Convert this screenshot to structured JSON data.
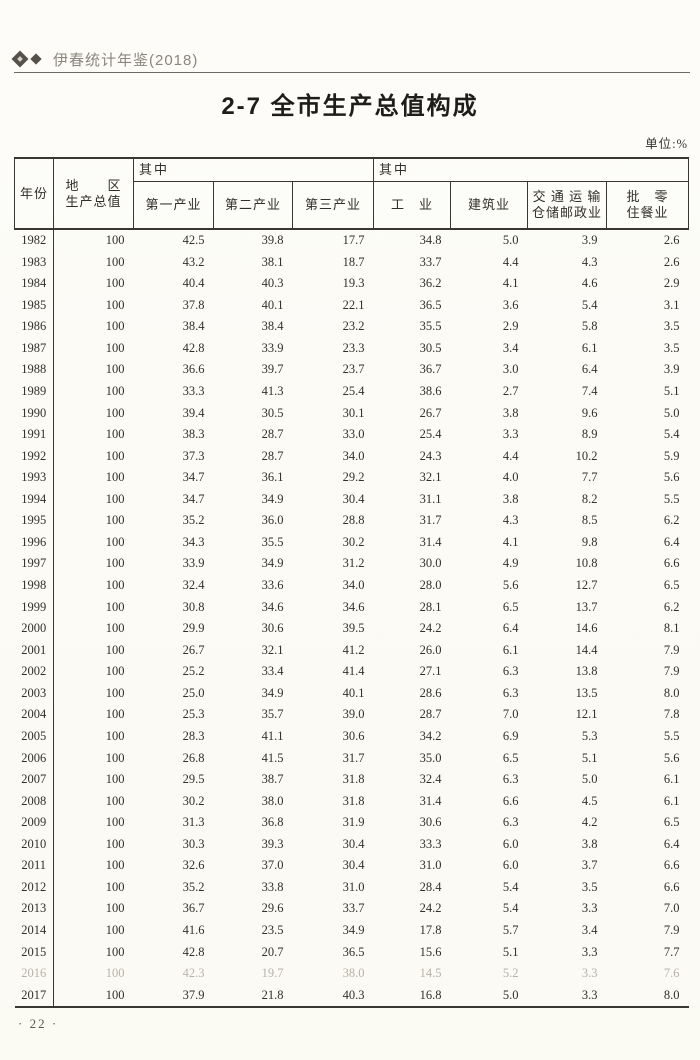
{
  "page": {
    "brand": "伊春统计年鉴(2018)",
    "page_number": "· 22 ·"
  },
  "title": "2-7  全市生产总值构成",
  "unit_label": "单位:%",
  "colors": {
    "paper": "#fcfbf6",
    "ink": "#33302b",
    "line": "#3a3733",
    "ink_faded": "#b7b2a8",
    "brand": "#8b867e",
    "diamond": "#55504a",
    "pagenum": "#5a564f"
  },
  "table": {
    "header": {
      "year": "年份",
      "gdp_line1": "地　　区",
      "gdp_line2": "生产总值",
      "group1_label": "其中",
      "group2_label": "其中",
      "primary_industry": "第一产业",
      "secondary_industry": "第二产业",
      "tertiary_industry": "第三产业",
      "industry": "工　业",
      "construction": "建筑业",
      "transport_line1": "交 通 运 输",
      "transport_line2": "仓储邮政业",
      "retail_line1": "批　零",
      "retail_line2": "住餐业"
    },
    "faded_years": [
      "2016"
    ],
    "rows": [
      {
        "year": "1982",
        "values": [
          "100",
          "42.5",
          "39.8",
          "17.7",
          "34.8",
          "5.0",
          "3.9",
          "2.6"
        ]
      },
      {
        "year": "1983",
        "values": [
          "100",
          "43.2",
          "38.1",
          "18.7",
          "33.7",
          "4.4",
          "4.3",
          "2.6"
        ]
      },
      {
        "year": "1984",
        "values": [
          "100",
          "40.4",
          "40.3",
          "19.3",
          "36.2",
          "4.1",
          "4.6",
          "2.9"
        ]
      },
      {
        "year": "1985",
        "values": [
          "100",
          "37.8",
          "40.1",
          "22.1",
          "36.5",
          "3.6",
          "5.4",
          "3.1"
        ]
      },
      {
        "year": "1986",
        "values": [
          "100",
          "38.4",
          "38.4",
          "23.2",
          "35.5",
          "2.9",
          "5.8",
          "3.5"
        ]
      },
      {
        "year": "1987",
        "values": [
          "100",
          "42.8",
          "33.9",
          "23.3",
          "30.5",
          "3.4",
          "6.1",
          "3.5"
        ]
      },
      {
        "year": "1988",
        "values": [
          "100",
          "36.6",
          "39.7",
          "23.7",
          "36.7",
          "3.0",
          "6.4",
          "3.9"
        ]
      },
      {
        "year": "1989",
        "values": [
          "100",
          "33.3",
          "41.3",
          "25.4",
          "38.6",
          "2.7",
          "7.4",
          "5.1"
        ]
      },
      {
        "year": "1990",
        "values": [
          "100",
          "39.4",
          "30.5",
          "30.1",
          "26.7",
          "3.8",
          "9.6",
          "5.0"
        ]
      },
      {
        "year": "1991",
        "values": [
          "100",
          "38.3",
          "28.7",
          "33.0",
          "25.4",
          "3.3",
          "8.9",
          "5.4"
        ]
      },
      {
        "year": "1992",
        "values": [
          "100",
          "37.3",
          "28.7",
          "34.0",
          "24.3",
          "4.4",
          "10.2",
          "5.9"
        ]
      },
      {
        "year": "1993",
        "values": [
          "100",
          "34.7",
          "36.1",
          "29.2",
          "32.1",
          "4.0",
          "7.7",
          "5.6"
        ]
      },
      {
        "year": "1994",
        "values": [
          "100",
          "34.7",
          "34.9",
          "30.4",
          "31.1",
          "3.8",
          "8.2",
          "5.5"
        ]
      },
      {
        "year": "1995",
        "values": [
          "100",
          "35.2",
          "36.0",
          "28.8",
          "31.7",
          "4.3",
          "8.5",
          "6.2"
        ]
      },
      {
        "year": "1996",
        "values": [
          "100",
          "34.3",
          "35.5",
          "30.2",
          "31.4",
          "4.1",
          "9.8",
          "6.4"
        ]
      },
      {
        "year": "1997",
        "values": [
          "100",
          "33.9",
          "34.9",
          "31.2",
          "30.0",
          "4.9",
          "10.8",
          "6.6"
        ]
      },
      {
        "year": "1998",
        "values": [
          "100",
          "32.4",
          "33.6",
          "34.0",
          "28.0",
          "5.6",
          "12.7",
          "6.5"
        ]
      },
      {
        "year": "1999",
        "values": [
          "100",
          "30.8",
          "34.6",
          "34.6",
          "28.1",
          "6.5",
          "13.7",
          "6.2"
        ]
      },
      {
        "year": "2000",
        "values": [
          "100",
          "29.9",
          "30.6",
          "39.5",
          "24.2",
          "6.4",
          "14.6",
          "8.1"
        ]
      },
      {
        "year": "2001",
        "values": [
          "100",
          "26.7",
          "32.1",
          "41.2",
          "26.0",
          "6.1",
          "14.4",
          "7.9"
        ]
      },
      {
        "year": "2002",
        "values": [
          "100",
          "25.2",
          "33.4",
          "41.4",
          "27.1",
          "6.3",
          "13.8",
          "7.9"
        ]
      },
      {
        "year": "2003",
        "values": [
          "100",
          "25.0",
          "34.9",
          "40.1",
          "28.6",
          "6.3",
          "13.5",
          "8.0"
        ]
      },
      {
        "year": "2004",
        "values": [
          "100",
          "25.3",
          "35.7",
          "39.0",
          "28.7",
          "7.0",
          "12.1",
          "7.8"
        ]
      },
      {
        "year": "2005",
        "values": [
          "100",
          "28.3",
          "41.1",
          "30.6",
          "34.2",
          "6.9",
          "5.3",
          "5.5"
        ]
      },
      {
        "year": "2006",
        "values": [
          "100",
          "26.8",
          "41.5",
          "31.7",
          "35.0",
          "6.5",
          "5.1",
          "5.6"
        ]
      },
      {
        "year": "2007",
        "values": [
          "100",
          "29.5",
          "38.7",
          "31.8",
          "32.4",
          "6.3",
          "5.0",
          "6.1"
        ]
      },
      {
        "year": "2008",
        "values": [
          "100",
          "30.2",
          "38.0",
          "31.8",
          "31.4",
          "6.6",
          "4.5",
          "6.1"
        ]
      },
      {
        "year": "2009",
        "values": [
          "100",
          "31.3",
          "36.8",
          "31.9",
          "30.6",
          "6.3",
          "4.2",
          "6.5"
        ]
      },
      {
        "year": "2010",
        "values": [
          "100",
          "30.3",
          "39.3",
          "30.4",
          "33.3",
          "6.0",
          "3.8",
          "6.4"
        ]
      },
      {
        "year": "2011",
        "values": [
          "100",
          "32.6",
          "37.0",
          "30.4",
          "31.0",
          "6.0",
          "3.7",
          "6.6"
        ]
      },
      {
        "year": "2012",
        "values": [
          "100",
          "35.2",
          "33.8",
          "31.0",
          "28.4",
          "5.4",
          "3.5",
          "6.6"
        ]
      },
      {
        "year": "2013",
        "values": [
          "100",
          "36.7",
          "29.6",
          "33.7",
          "24.2",
          "5.4",
          "3.3",
          "7.0"
        ]
      },
      {
        "year": "2014",
        "values": [
          "100",
          "41.6",
          "23.5",
          "34.9",
          "17.8",
          "5.7",
          "3.4",
          "7.9"
        ]
      },
      {
        "year": "2015",
        "values": [
          "100",
          "42.8",
          "20.7",
          "36.5",
          "15.6",
          "5.1",
          "3.3",
          "7.7"
        ]
      },
      {
        "year": "2016",
        "values": [
          "100",
          "42.3",
          "19.7",
          "38.0",
          "14.5",
          "5.2",
          "3.3",
          "7.6"
        ]
      },
      {
        "year": "2017",
        "values": [
          "100",
          "37.9",
          "21.8",
          "40.3",
          "16.8",
          "5.0",
          "3.3",
          "8.0"
        ]
      }
    ]
  }
}
